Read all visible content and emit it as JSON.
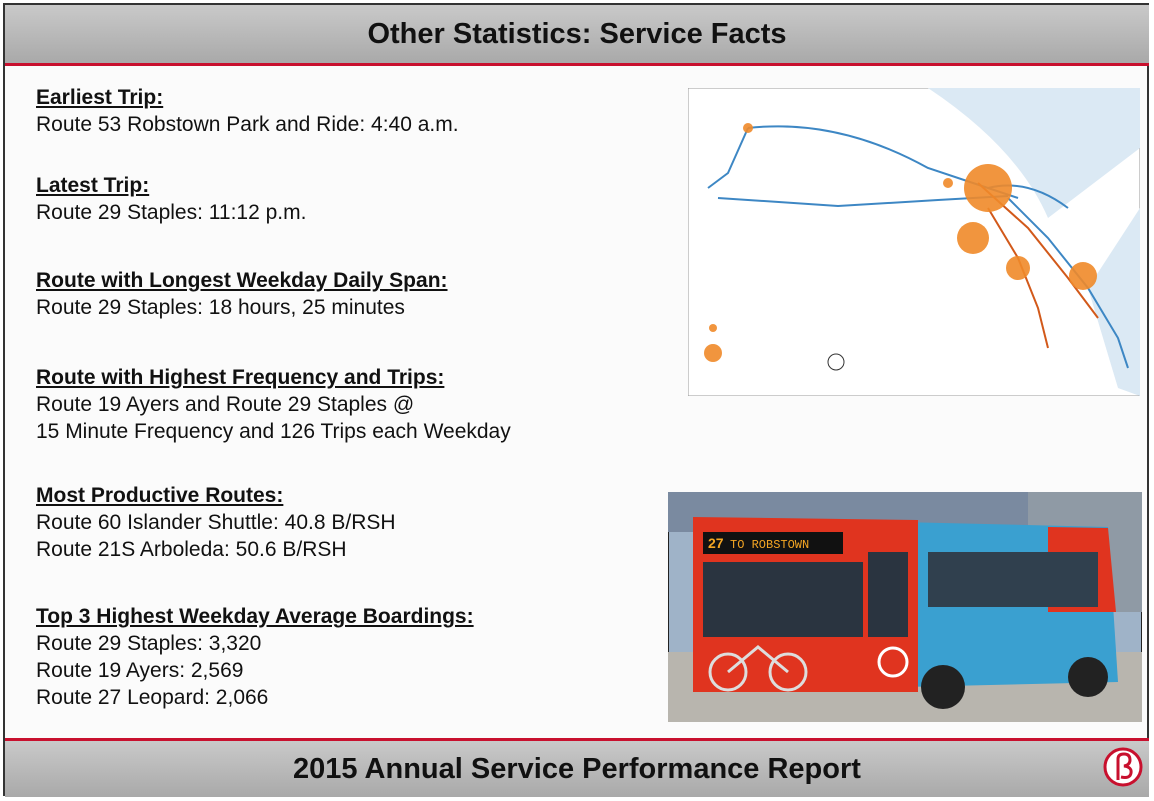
{
  "header": {
    "title": "Other Statistics: Service Facts"
  },
  "sections": [
    {
      "heading": "Earliest Trip:",
      "lines": [
        "Route 53 Robstown Park and Ride: 4:40 a.m."
      ]
    },
    {
      "heading": "Latest Trip:",
      "lines": [
        "Route 29 Staples: 11:12 p.m."
      ]
    },
    {
      "heading": "Route with Longest Weekday Daily Span:",
      "lines": [
        "Route 29 Staples: 18 hours, 25 minutes"
      ]
    },
    {
      "heading": "Route with Highest Frequency and Trips:",
      "lines": [
        "Route 19 Ayers and Route 29 Staples @",
        "15 Minute Frequency and 126 Trips each Weekday"
      ]
    },
    {
      "heading": "Most Productive Routes:",
      "lines": [
        "Route 60 Islander Shuttle: 40.8 B/RSH",
        "Route 21S Arboleda: 50.6 B/RSH"
      ]
    },
    {
      "heading": "Top 3 Highest Weekday Average Boardings:",
      "lines": [
        "Route 29 Staples: 3,320",
        "Route 19 Ayers: 2,569",
        "Route 27 Leopard: 2,066"
      ]
    }
  ],
  "photo": {
    "sign_route": "27",
    "sign_text": "TO ROBSTOWN"
  },
  "footer": {
    "title": "2015 Annual Service Performance Report"
  }
}
